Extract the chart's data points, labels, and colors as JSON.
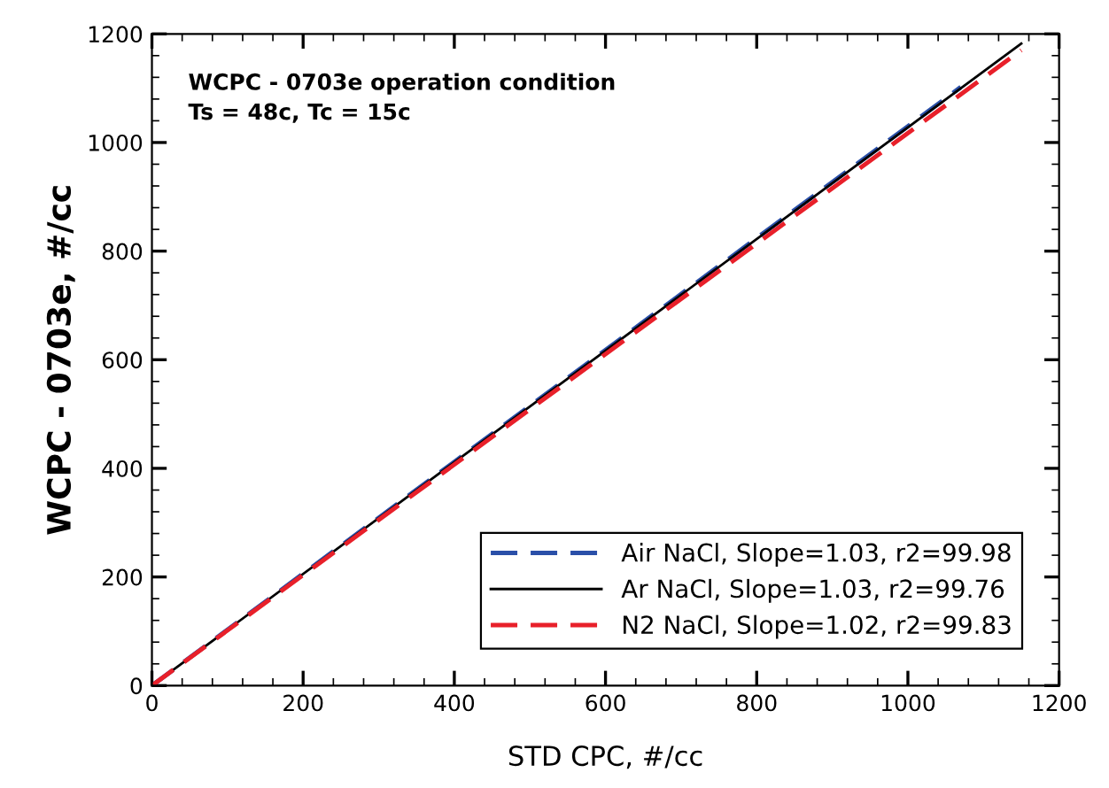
{
  "chart_data": {
    "type": "line",
    "xlabel": "STD CPC, #/cc",
    "ylabel": "WCPC - 0703e, #/cc",
    "annotations": [
      "WCPC - 0703e operation condition\nTs = 48c, Tc = 15c"
    ],
    "series": [
      {
        "name": "Air NaCl, Slope=1.03, r2=99.98",
        "color": "#2a4fa8",
        "x": [
          0,
          1070
        ],
        "values": [
          0,
          1102
        ],
        "line_style": "dashed"
      },
      {
        "name": "Ar NaCl, Slope=1.03, r2=99.76",
        "color": "#000000",
        "x": [
          0,
          1150
        ],
        "values": [
          0,
          1182
        ],
        "line_style": "solid"
      },
      {
        "name": "N2 NaCl, Slope=1.02, r2=99.83",
        "color": "#e8202a",
        "x": [
          0,
          1150
        ],
        "values": [
          0,
          1170
        ],
        "line_style": "dashed"
      }
    ],
    "xlim": [
      0,
      1200
    ],
    "ylim": [
      0,
      1200
    ],
    "xticks": [
      0,
      200,
      400,
      600,
      800,
      1000,
      1200
    ],
    "yticks": [
      0,
      200,
      400,
      600,
      800,
      1000,
      1200
    ],
    "grid": false,
    "legend": "bottom right",
    "marker": "none"
  }
}
